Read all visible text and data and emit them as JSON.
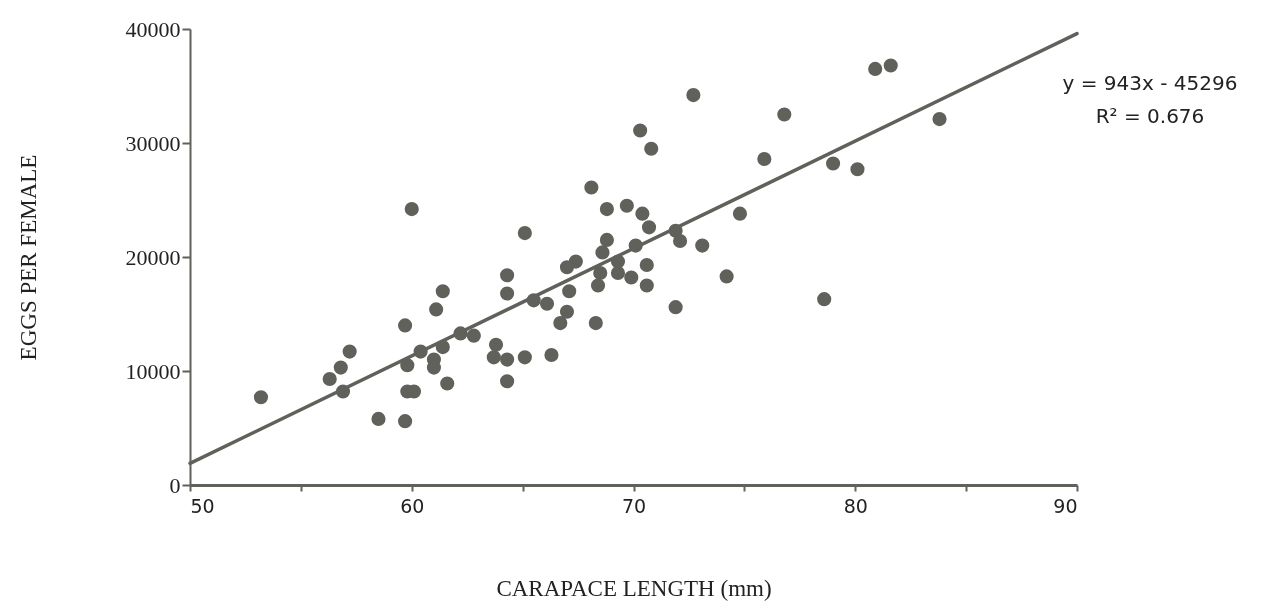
{
  "chart_data": {
    "type": "scatter",
    "xlabel": "CARAPACE LENGTH (mm)",
    "ylabel": "EGGS PER FEMALE",
    "xlim": [
      50,
      90
    ],
    "xticks": [
      50,
      {
        "value": 55,
        "label": null
      },
      60,
      {
        "value": 65,
        "label": null
      },
      70,
      {
        "value": 75,
        "label": null
      },
      80,
      {
        "value": 85,
        "label": null
      },
      90
    ],
    "ylim": [
      0,
      40000
    ],
    "yticks": [
      0,
      10000,
      20000,
      30000,
      40000
    ],
    "grid": false,
    "marker": "circle",
    "annotations": [
      "y = 943x - 45296",
      "R² = 0.676"
    ],
    "series": [
      {
        "color": "#5f615a",
        "x": [
          53.2,
          57.2,
          56.8,
          56.3,
          56.9,
          58.5,
          59.7,
          59.7,
          60.0,
          59.8,
          59.8,
          60.1,
          60.4,
          61.1,
          61.4,
          61.4,
          61.0,
          61.0,
          61.6,
          62.2,
          62.8,
          64.3,
          64.3,
          63.8,
          63.7,
          64.3,
          64.3,
          65.1,
          65.1,
          66.3,
          68.1,
          68.8,
          69.7,
          70.4,
          70.7,
          68.8,
          68.6,
          67.4,
          67.0,
          70.1,
          69.3,
          69.3,
          68.5,
          68.4,
          67.1,
          70.6,
          70.6,
          69.9,
          74.8,
          71.9,
          72.1,
          73.1,
          74.2,
          71.9,
          65.5,
          66.1,
          67.0,
          66.7,
          68.3,
          75.9,
          72.7,
          76.8,
          83.8,
          79.0,
          80.1,
          78.6,
          80.9,
          81.6,
          70.3,
          70.8
        ],
        "values": [
          7700,
          11700,
          10300,
          9300,
          8200,
          5800,
          5600,
          14000,
          24200,
          10500,
          8200,
          8200,
          11700,
          15400,
          17000,
          12100,
          11000,
          10300,
          8900,
          13300,
          13100,
          18400,
          16800,
          12300,
          11200,
          11000,
          9100,
          22100,
          11200,
          11400,
          26100,
          24200,
          24500,
          23800,
          22600,
          21500,
          20400,
          19600,
          19100,
          21000,
          19600,
          18600,
          18600,
          17500,
          17000,
          19300,
          17500,
          18200,
          23800,
          22300,
          21400,
          21000,
          18300,
          15600,
          16200,
          15900,
          15200,
          14200,
          14200,
          28600,
          34200,
          32500,
          32100,
          28200,
          27700,
          16300,
          36500,
          36800,
          31100,
          29500
        ]
      },
      {
        "type": "line",
        "color": "#5f615a",
        "x": [
          50,
          90
        ],
        "values": [
          1900,
          39600
        ],
        "marker": "none",
        "line_style": "solid"
      }
    ]
  }
}
